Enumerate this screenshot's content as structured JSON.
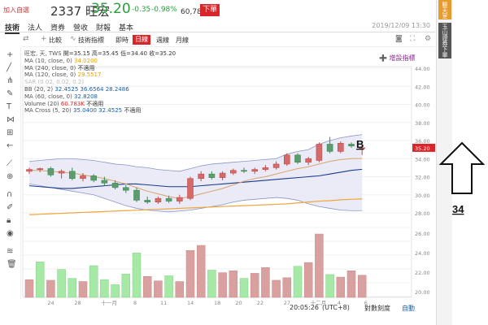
{
  "header": {
    "favorite": "加入自選",
    "code": "2337 旺宏",
    "price": "35.20",
    "change": "-0.35",
    "change_pct": "-0.98%",
    "volume": "60,783張",
    "order_label": "下單"
  },
  "tabs": [
    "技術",
    "法人",
    "資券",
    "營收",
    "財報",
    "基本"
  ],
  "datetime": "2019/12/09 13:30",
  "toolbar": {
    "compare": "比較",
    "indicators": "技術指標",
    "realtime": "即時",
    "daily": "日線",
    "weekly": "週線",
    "monthly": "月線"
  },
  "right_sidebar": {
    "chat": "聊天室",
    "trade": "玉山證券下單"
  },
  "legend": {
    "ohlc_label": "旺宏, 天, TWS",
    "open": "開=35.15",
    "high": "高=35.45",
    "low": "低=34.40",
    "close": "收=35.20",
    "ma10_label": "MA (10, close, 0)",
    "ma10_value": "34.0200",
    "ma240_label": "MA (240, close, 0)",
    "ma240_value": "不適用",
    "ma120_label": "MA (120, close, 0)",
    "ma120_value": "29.5517",
    "sar_label": "SAR (0.02, 0.02, 0.2)",
    "bb_label": "BB (20, 2)",
    "bb_values": [
      "32.4525",
      "36.6564",
      "28.2486"
    ],
    "ma60_label": "MA (60, close, 0)",
    "ma60_value": "32.8208",
    "volume_label": "Volume (20)",
    "volume_value": "60.783K",
    "volume_ma": "不適用",
    "macross_label": "MA Cross (5, 20)",
    "macross_values": [
      "35.0400",
      "32.4525",
      "不適用"
    ]
  },
  "add_indicator": "➕ 增設指標",
  "annotations": {
    "letter": "B",
    "number": "34",
    "price_tag": "35.20"
  },
  "footer": {
    "time": "20:05:26",
    "tz": "(UTC+8)",
    "log": "對數刻度",
    "auto": "自動"
  },
  "colors": {
    "up": "#d9262b",
    "down": "#2a9d3c",
    "up_body": "#e8b4b4",
    "down_body": "#6aa87a",
    "bb_fill": "#e6e8f5",
    "ma10": "#d9a26b",
    "ma60": "#1a3a8a",
    "ma120": "#f0a53a",
    "vol_up": "#d9a0a0",
    "vol_down": "#a6e8a6"
  },
  "chart_data": {
    "type": "candlestick",
    "y_ticks": [
      "44.00",
      "42.00",
      "40.00",
      "38.00",
      "36.00",
      "34.00",
      "32.00",
      "30.00",
      "28.00",
      "26.00",
      "24.00",
      "22.00",
      "20.00"
    ],
    "x_ticks": [
      "24",
      "28",
      "十一月",
      "8",
      "11",
      "14",
      "18",
      "20",
      "22",
      "27",
      "十二月",
      "4",
      "6"
    ],
    "price_range": [
      28,
      44
    ],
    "candles": [
      {
        "o": 32.6,
        "h": 33.0,
        "l": 32.3,
        "c": 32.8
      },
      {
        "o": 32.8,
        "h": 33.0,
        "l": 32.5,
        "c": 32.9
      },
      {
        "o": 32.9,
        "h": 33.1,
        "l": 32.0,
        "c": 32.2
      },
      {
        "o": 32.4,
        "h": 32.8,
        "l": 31.8,
        "c": 32.6
      },
      {
        "o": 32.6,
        "h": 33.0,
        "l": 31.6,
        "c": 31.8
      },
      {
        "o": 31.8,
        "h": 32.4,
        "l": 31.5,
        "c": 32.1
      },
      {
        "o": 32.1,
        "h": 32.3,
        "l": 31.4,
        "c": 31.6
      },
      {
        "o": 31.6,
        "h": 32.0,
        "l": 31.0,
        "c": 31.3
      },
      {
        "o": 31.3,
        "h": 31.6,
        "l": 30.6,
        "c": 30.8
      },
      {
        "o": 30.8,
        "h": 31.1,
        "l": 30.2,
        "c": 30.5
      },
      {
        "o": 30.5,
        "h": 30.8,
        "l": 29.2,
        "c": 29.4
      },
      {
        "o": 29.4,
        "h": 29.8,
        "l": 29.0,
        "c": 29.2
      },
      {
        "o": 29.2,
        "h": 29.8,
        "l": 29.0,
        "c": 29.6
      },
      {
        "o": 29.6,
        "h": 29.9,
        "l": 29.1,
        "c": 29.3
      },
      {
        "o": 29.3,
        "h": 30.0,
        "l": 29.0,
        "c": 29.7
      },
      {
        "o": 29.6,
        "h": 32.0,
        "l": 29.4,
        "c": 31.8
      },
      {
        "o": 31.8,
        "h": 32.6,
        "l": 31.5,
        "c": 32.3
      },
      {
        "o": 32.3,
        "h": 32.6,
        "l": 31.7,
        "c": 31.9
      },
      {
        "o": 31.9,
        "h": 32.6,
        "l": 31.6,
        "c": 32.4
      },
      {
        "o": 32.4,
        "h": 32.9,
        "l": 32.2,
        "c": 32.7
      },
      {
        "o": 32.7,
        "h": 33.0,
        "l": 32.4,
        "c": 32.6
      },
      {
        "o": 32.6,
        "h": 33.0,
        "l": 32.3,
        "c": 32.8
      },
      {
        "o": 32.8,
        "h": 33.3,
        "l": 32.6,
        "c": 33.0
      },
      {
        "o": 33.0,
        "h": 33.7,
        "l": 32.8,
        "c": 33.4
      },
      {
        "o": 33.4,
        "h": 34.6,
        "l": 33.2,
        "c": 34.4
      },
      {
        "o": 34.4,
        "h": 34.6,
        "l": 33.4,
        "c": 33.6
      },
      {
        "o": 33.6,
        "h": 34.2,
        "l": 33.3,
        "c": 34.0
      },
      {
        "o": 33.8,
        "h": 35.8,
        "l": 33.6,
        "c": 35.6
      },
      {
        "o": 35.6,
        "h": 36.4,
        "l": 34.6,
        "c": 34.8
      },
      {
        "o": 34.8,
        "h": 35.9,
        "l": 34.6,
        "c": 35.7
      },
      {
        "o": 35.6,
        "h": 35.8,
        "l": 35.2,
        "c": 35.4
      },
      {
        "o": 35.15,
        "h": 35.45,
        "l": 34.4,
        "c": 35.2
      }
    ],
    "volumes": [
      0.28,
      0.56,
      0.27,
      0.44,
      0.3,
      0.25,
      0.5,
      0.28,
      0.2,
      0.37,
      0.7,
      0.33,
      0.26,
      0.34,
      0.25,
      0.74,
      0.82,
      0.43,
      0.39,
      0.42,
      0.3,
      0.38,
      0.47,
      0.27,
      0.31,
      0.49,
      0.55,
      1.0,
      0.36,
      0.32,
      0.42,
      0.35
    ],
    "vol_color": [
      "up",
      "down",
      "up",
      "down",
      "down",
      "up",
      "down",
      "down",
      "down",
      "down",
      "down",
      "up",
      "up",
      "down",
      "up",
      "up",
      "up",
      "down",
      "up",
      "up",
      "down",
      "up",
      "up",
      "up",
      "up",
      "down",
      "up",
      "up",
      "down",
      "up",
      "up",
      "up"
    ],
    "bb_upper": [
      33.7,
      33.8,
      33.9,
      34.0,
      34.0,
      33.9,
      33.8,
      33.6,
      33.4,
      33.3,
      33.1,
      33.0,
      32.8,
      32.7,
      32.6,
      32.9,
      33.2,
      33.4,
      33.5,
      33.6,
      33.7,
      33.8,
      33.9,
      34.0,
      34.5,
      34.8,
      35.0,
      35.6,
      36.0,
      36.3,
      36.5,
      36.66
    ],
    "bb_lower": [
      31.2,
      31.0,
      30.8,
      30.6,
      30.4,
      30.2,
      30.0,
      29.6,
      29.2,
      28.8,
      28.5,
      28.3,
      28.2,
      28.1,
      28.2,
      28.3,
      28.5,
      28.7,
      28.9,
      29.2,
      29.4,
      29.5,
      29.6,
      29.7,
      29.6,
      29.4,
      29.0,
      28.7,
      28.5,
      28.3,
      28.25,
      28.25
    ],
    "ma10": [
      32.7,
      32.7,
      32.6,
      32.5,
      32.4,
      32.2,
      32.0,
      31.8,
      31.5,
      31.2,
      30.8,
      30.4,
      30.1,
      29.8,
      29.6,
      29.8,
      30.1,
      30.4,
      30.7,
      31.1,
      31.5,
      31.8,
      32.0,
      32.3,
      32.6,
      32.9,
      33.1,
      33.4,
      33.7,
      33.9,
      34.0,
      34.02
    ],
    "ma60": [
      31.0,
      30.9,
      30.8,
      30.7,
      30.7,
      30.8,
      30.9,
      31.0,
      31.1,
      31.2,
      31.2,
      31.1,
      31.0,
      30.9,
      30.9,
      30.9,
      31.0,
      31.1,
      31.2,
      31.3,
      31.4,
      31.5,
      31.6,
      31.7,
      31.8,
      31.9,
      32.0,
      32.1,
      32.3,
      32.5,
      32.7,
      32.82
    ],
    "ma120": [
      27.8,
      27.85,
      27.9,
      27.95,
      28.0,
      28.05,
      28.1,
      28.15,
      28.2,
      28.25,
      28.3,
      28.35,
      28.4,
      28.45,
      28.5,
      28.55,
      28.6,
      28.65,
      28.7,
      28.75,
      28.8,
      28.85,
      28.9,
      28.95,
      29.0,
      29.1,
      29.2,
      29.3,
      29.35,
      29.45,
      29.5,
      29.55
    ]
  }
}
